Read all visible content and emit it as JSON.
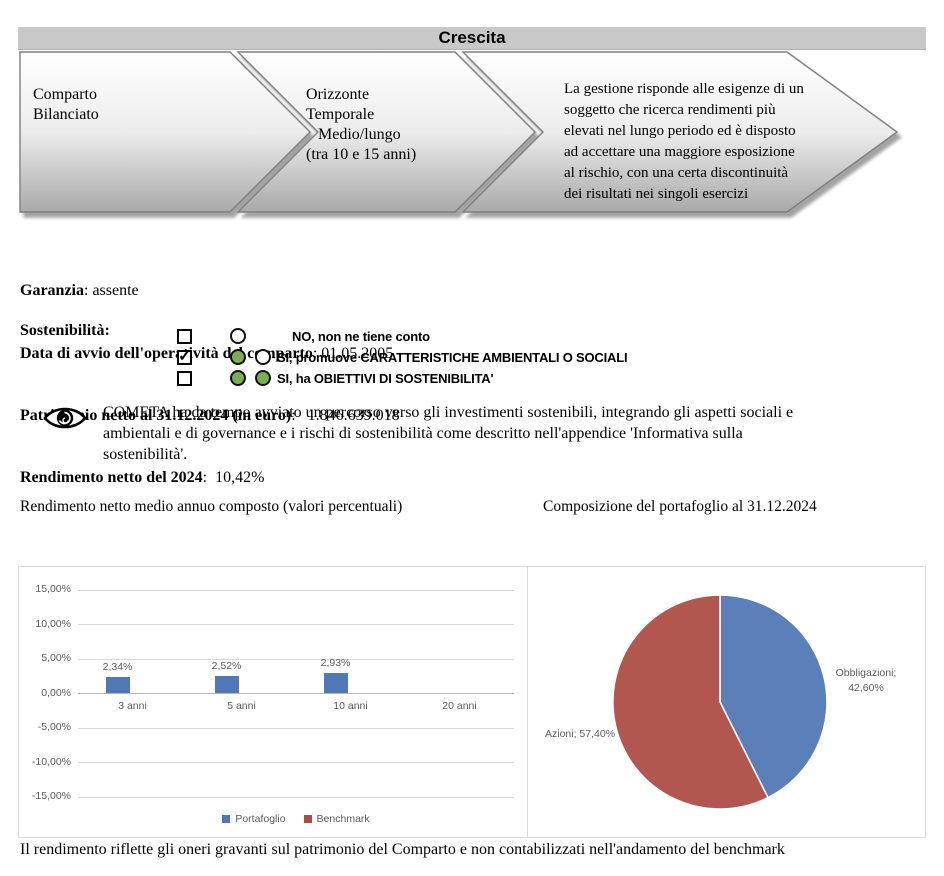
{
  "header": {
    "title": "Crescita"
  },
  "chevrons": {
    "step1": "Comparto\nBilanciato",
    "step2": "Orizzonte\nTemporale\n   Medio/lungo\n(tra 10 e 15 anni)",
    "step3": "La gestione risponde alle esigenze di un\nsoggetto che ricerca rendimenti più\nelevati nel lungo periodo ed è disposto\nad accettare una maggiore esposizione\nal rischio, con una certa discontinuità\ndei risultati nei singoli esercizi"
  },
  "info": [
    {
      "label": "Garanzia",
      "value": ": assente"
    },
    {
      "label": "Data di avvio dell'operatività del comparto",
      "value": ": 01.05.2005"
    },
    {
      "label": "Patrimonio netto al 31.12.2024 (in euro)",
      "value": ":   1.846.639.018"
    },
    {
      "label": "Rendimento netto del 2024",
      "value": ":  10,42%"
    }
  ],
  "sustainability": {
    "title": "Sostenibilità:",
    "options": [
      {
        "label": "NO, non ne tiene conto",
        "checked": false
      },
      {
        "label": "SI, promuove CARATTERISTICHE AMBIENTALI O SOCIALI",
        "checked": true
      },
      {
        "label": "SI, ha OBIETTIVI DI SOSTENIBILITA'",
        "checked": false
      }
    ]
  },
  "cometa_note": "COMETA ha da tempo avviato un percorso verso gli investimenti sostenibili, integrando gli aspetti sociali e\nambientali e di governance e i rischi di sostenibilità come descritto nell'appendice 'Informativa sulla\nsostenibilità'.",
  "section_titles": {
    "left": "Rendimento netto medio annuo composto (valori percentuali)",
    "right": "Composizione del portafoglio al 31.12.2024"
  },
  "chart_data": [
    {
      "type": "bar",
      "title": "Rendimento netto medio annuo composto (valori percentuali)",
      "categories": [
        "3 anni",
        "5 anni",
        "10 anni",
        "20 anni"
      ],
      "series": [
        {
          "name": "Portafoglio",
          "color": "#4f79b6",
          "values": [
            2.34,
            2.52,
            2.93,
            null
          ],
          "labels": [
            "2,34%",
            "2,52%",
            "2,93%",
            ""
          ]
        },
        {
          "name": "Benchmark",
          "color": "#b04a42",
          "values": [
            null,
            null,
            null,
            null
          ],
          "labels": [
            "",
            "",
            "",
            ""
          ]
        }
      ],
      "xlabel": "",
      "ylabel": "",
      "ylim": [
        -15,
        15
      ],
      "ytick_labels": [
        "15,00%",
        "10,00%",
        "5,00%",
        "0,00%",
        "-5,00%",
        "-10,00%",
        "-15,00%"
      ],
      "grid": true,
      "legend_position": "bottom"
    },
    {
      "type": "pie",
      "title": "Composizione del portafoglio al 31.12.2024",
      "slices": [
        {
          "label": "Obbligazioni",
          "value": 42.6,
          "display": "Obbligazioni;\n42,60%",
          "color": "#5b7fb8"
        },
        {
          "label": "Azioni",
          "value": 57.4,
          "display": "Azioni; 57,40%",
          "color": "#b1574f"
        }
      ],
      "start_angle_deg": 0,
      "direction": "clockwise"
    }
  ],
  "footnote": "Il rendimento riflette gli oneri gravanti sul patrimonio del Comparto e non contabilizzati nell'andamento del benchmark"
}
